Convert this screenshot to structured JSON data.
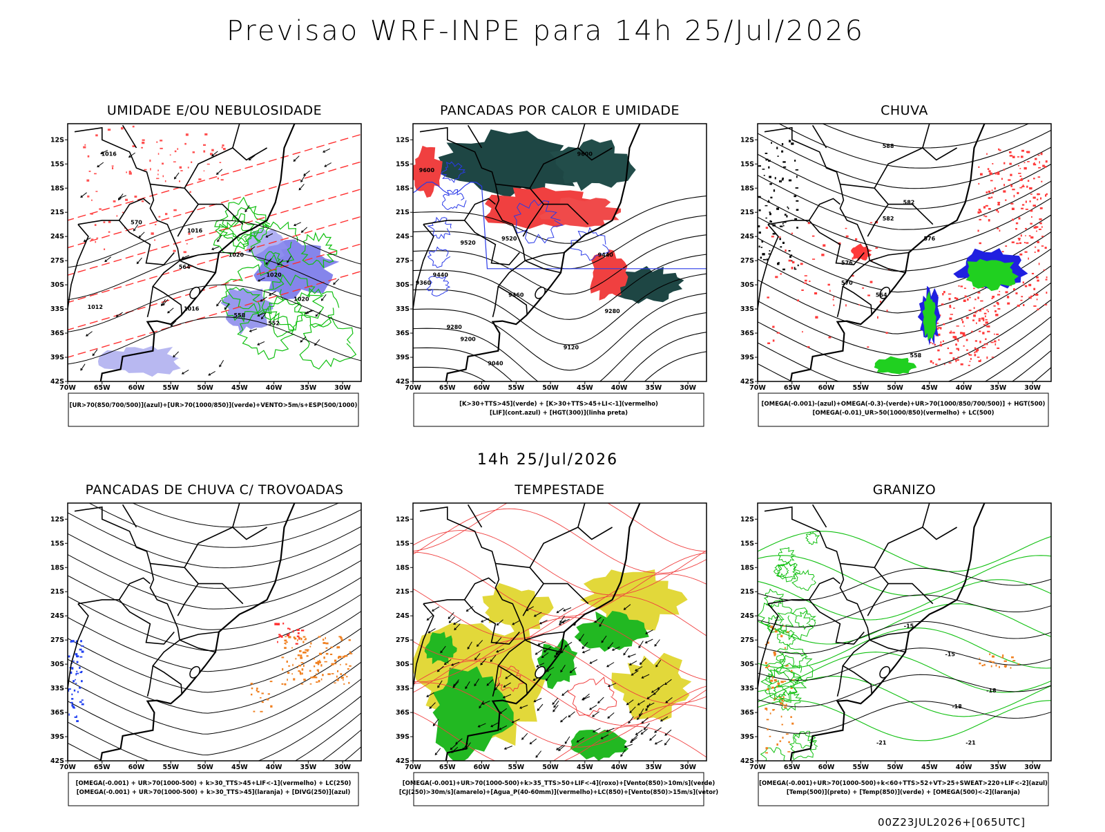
{
  "title": "Previsao WRF-INPE  para 14h 25/Jul/2026",
  "subtitle": "14h 25/Jul/2026",
  "footer": "00Z23JUL2026+[065UTC]",
  "axes": {
    "lat_ticks": [
      "12S",
      "15S",
      "18S",
      "21S",
      "24S",
      "27S",
      "30S",
      "33S",
      "36S",
      "39S",
      "42S"
    ],
    "lon_ticks": [
      "70W",
      "65W",
      "60W",
      "55W",
      "50W",
      "45W",
      "40W",
      "35W",
      "30W"
    ]
  },
  "panels": [
    {
      "title": "UMIDADE E/OU NEBULOSIDADE",
      "legend": [
        "[UR>70(850/700/500)](azul)+[UR>70(1000/850)](verde)+VENTO>5m/s+ESP(500/1000)"
      ],
      "contour_labels": [
        "1016",
        "1016",
        "1020",
        "1020",
        "1016",
        "1020",
        "1012",
        "570",
        "564",
        "558",
        "552"
      ]
    },
    {
      "title": "PANCADAS POR CALOR E UMIDADE",
      "legend": [
        "[K>30+TTS>45](verde) + [K>30+TTS>45+LI<-1](vermelho)",
        "[LIF](cont.azul) + [HGT(300)](linha preta)"
      ],
      "contour_labels": [
        "9600",
        "9600",
        "9520",
        "9520",
        "9440",
        "9440",
        "9360",
        "9360",
        "9280",
        "9280",
        "9200",
        "9120",
        "9040"
      ]
    },
    {
      "title": "CHUVA",
      "legend": [
        "[OMEGA(-0.001)-(azul)+OMEGA(-0.3)-(verde)+UR>70(1000/850/700/500)] + HGT(500)",
        "[OMEGA(-0.01)_UR>50(1000/850)(vermelho) + LC(500)"
      ],
      "contour_labels": [
        "588",
        "582",
        "582",
        "576",
        "576",
        "570",
        "564",
        "558"
      ]
    },
    {
      "title": "PANCADAS DE CHUVA C/ TROVOADAS",
      "legend": [
        "[OMEGA(-0.001) + UR>70(1000-500) + k>30_TTS>45+LIF<-1](vermelho) + LC(250)",
        "[OMEGA(-0.001) + UR>70(1000-500) + k>30_TTS>45](laranja) + [DIVG(250)](azul)"
      ],
      "contour_labels": []
    },
    {
      "title": "TEMPESTADE",
      "legend": [
        "[OMEGA(-0.001)+UR>70(1000-500)+k>35_TTS>50+LIF<-4](roxo)+[Vento(850)>10m/s](verde)",
        "[CJ(250)>30m/s](amarelo)+[Agua_P(40-60mm)](vermelho)+LC(850)+[Vento(850)>15m/s](vetor)"
      ],
      "contour_labels": []
    },
    {
      "title": "GRANIZO",
      "legend": [
        "[OMEGA(-0.001)+UR>70(1000-500)+k<60+TTS>52+VT>25+SWEAT>220+LIF<-2](azul)",
        "[Temp(500)](preto) + [Temp(850)](verde) + [OMEGA(500)<-2](laranja)"
      ],
      "contour_labels": [
        "-15",
        "-15",
        "-18",
        "-18",
        "-21",
        "-21"
      ]
    }
  ]
}
